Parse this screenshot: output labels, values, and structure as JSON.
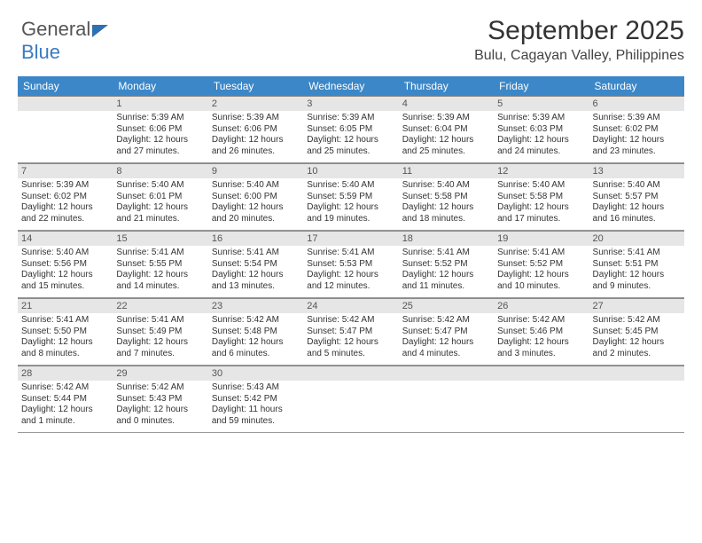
{
  "logo": {
    "text1": "General",
    "text2": "Blue"
  },
  "title": "September 2025",
  "location": "Bulu, Cagayan Valley, Philippines",
  "colors": {
    "header_bg": "#3b87c8",
    "header_fg": "#ffffff",
    "numbar_bg": "#e6e6e6",
    "accent": "#3b7bbf",
    "text": "#333333"
  },
  "font": {
    "title_size": 30,
    "location_size": 16,
    "dayhead_size": 12,
    "body_size": 10
  },
  "day_headers": [
    "Sunday",
    "Monday",
    "Tuesday",
    "Wednesday",
    "Thursday",
    "Friday",
    "Saturday"
  ],
  "weeks": [
    [
      null,
      {
        "n": "1",
        "sr": "Sunrise: 5:39 AM",
        "ss": "Sunset: 6:06 PM",
        "d1": "Daylight: 12 hours",
        "d2": "and 27 minutes."
      },
      {
        "n": "2",
        "sr": "Sunrise: 5:39 AM",
        "ss": "Sunset: 6:06 PM",
        "d1": "Daylight: 12 hours",
        "d2": "and 26 minutes."
      },
      {
        "n": "3",
        "sr": "Sunrise: 5:39 AM",
        "ss": "Sunset: 6:05 PM",
        "d1": "Daylight: 12 hours",
        "d2": "and 25 minutes."
      },
      {
        "n": "4",
        "sr": "Sunrise: 5:39 AM",
        "ss": "Sunset: 6:04 PM",
        "d1": "Daylight: 12 hours",
        "d2": "and 25 minutes."
      },
      {
        "n": "5",
        "sr": "Sunrise: 5:39 AM",
        "ss": "Sunset: 6:03 PM",
        "d1": "Daylight: 12 hours",
        "d2": "and 24 minutes."
      },
      {
        "n": "6",
        "sr": "Sunrise: 5:39 AM",
        "ss": "Sunset: 6:02 PM",
        "d1": "Daylight: 12 hours",
        "d2": "and 23 minutes."
      }
    ],
    [
      {
        "n": "7",
        "sr": "Sunrise: 5:39 AM",
        "ss": "Sunset: 6:02 PM",
        "d1": "Daylight: 12 hours",
        "d2": "and 22 minutes."
      },
      {
        "n": "8",
        "sr": "Sunrise: 5:40 AM",
        "ss": "Sunset: 6:01 PM",
        "d1": "Daylight: 12 hours",
        "d2": "and 21 minutes."
      },
      {
        "n": "9",
        "sr": "Sunrise: 5:40 AM",
        "ss": "Sunset: 6:00 PM",
        "d1": "Daylight: 12 hours",
        "d2": "and 20 minutes."
      },
      {
        "n": "10",
        "sr": "Sunrise: 5:40 AM",
        "ss": "Sunset: 5:59 PM",
        "d1": "Daylight: 12 hours",
        "d2": "and 19 minutes."
      },
      {
        "n": "11",
        "sr": "Sunrise: 5:40 AM",
        "ss": "Sunset: 5:58 PM",
        "d1": "Daylight: 12 hours",
        "d2": "and 18 minutes."
      },
      {
        "n": "12",
        "sr": "Sunrise: 5:40 AM",
        "ss": "Sunset: 5:58 PM",
        "d1": "Daylight: 12 hours",
        "d2": "and 17 minutes."
      },
      {
        "n": "13",
        "sr": "Sunrise: 5:40 AM",
        "ss": "Sunset: 5:57 PM",
        "d1": "Daylight: 12 hours",
        "d2": "and 16 minutes."
      }
    ],
    [
      {
        "n": "14",
        "sr": "Sunrise: 5:40 AM",
        "ss": "Sunset: 5:56 PM",
        "d1": "Daylight: 12 hours",
        "d2": "and 15 minutes."
      },
      {
        "n": "15",
        "sr": "Sunrise: 5:41 AM",
        "ss": "Sunset: 5:55 PM",
        "d1": "Daylight: 12 hours",
        "d2": "and 14 minutes."
      },
      {
        "n": "16",
        "sr": "Sunrise: 5:41 AM",
        "ss": "Sunset: 5:54 PM",
        "d1": "Daylight: 12 hours",
        "d2": "and 13 minutes."
      },
      {
        "n": "17",
        "sr": "Sunrise: 5:41 AM",
        "ss": "Sunset: 5:53 PM",
        "d1": "Daylight: 12 hours",
        "d2": "and 12 minutes."
      },
      {
        "n": "18",
        "sr": "Sunrise: 5:41 AM",
        "ss": "Sunset: 5:52 PM",
        "d1": "Daylight: 12 hours",
        "d2": "and 11 minutes."
      },
      {
        "n": "19",
        "sr": "Sunrise: 5:41 AM",
        "ss": "Sunset: 5:52 PM",
        "d1": "Daylight: 12 hours",
        "d2": "and 10 minutes."
      },
      {
        "n": "20",
        "sr": "Sunrise: 5:41 AM",
        "ss": "Sunset: 5:51 PM",
        "d1": "Daylight: 12 hours",
        "d2": "and 9 minutes."
      }
    ],
    [
      {
        "n": "21",
        "sr": "Sunrise: 5:41 AM",
        "ss": "Sunset: 5:50 PM",
        "d1": "Daylight: 12 hours",
        "d2": "and 8 minutes."
      },
      {
        "n": "22",
        "sr": "Sunrise: 5:41 AM",
        "ss": "Sunset: 5:49 PM",
        "d1": "Daylight: 12 hours",
        "d2": "and 7 minutes."
      },
      {
        "n": "23",
        "sr": "Sunrise: 5:42 AM",
        "ss": "Sunset: 5:48 PM",
        "d1": "Daylight: 12 hours",
        "d2": "and 6 minutes."
      },
      {
        "n": "24",
        "sr": "Sunrise: 5:42 AM",
        "ss": "Sunset: 5:47 PM",
        "d1": "Daylight: 12 hours",
        "d2": "and 5 minutes."
      },
      {
        "n": "25",
        "sr": "Sunrise: 5:42 AM",
        "ss": "Sunset: 5:47 PM",
        "d1": "Daylight: 12 hours",
        "d2": "and 4 minutes."
      },
      {
        "n": "26",
        "sr": "Sunrise: 5:42 AM",
        "ss": "Sunset: 5:46 PM",
        "d1": "Daylight: 12 hours",
        "d2": "and 3 minutes."
      },
      {
        "n": "27",
        "sr": "Sunrise: 5:42 AM",
        "ss": "Sunset: 5:45 PM",
        "d1": "Daylight: 12 hours",
        "d2": "and 2 minutes."
      }
    ],
    [
      {
        "n": "28",
        "sr": "Sunrise: 5:42 AM",
        "ss": "Sunset: 5:44 PM",
        "d1": "Daylight: 12 hours",
        "d2": "and 1 minute."
      },
      {
        "n": "29",
        "sr": "Sunrise: 5:42 AM",
        "ss": "Sunset: 5:43 PM",
        "d1": "Daylight: 12 hours",
        "d2": "and 0 minutes."
      },
      {
        "n": "30",
        "sr": "Sunrise: 5:43 AM",
        "ss": "Sunset: 5:42 PM",
        "d1": "Daylight: 11 hours",
        "d2": "and 59 minutes."
      },
      null,
      null,
      null,
      null
    ]
  ]
}
